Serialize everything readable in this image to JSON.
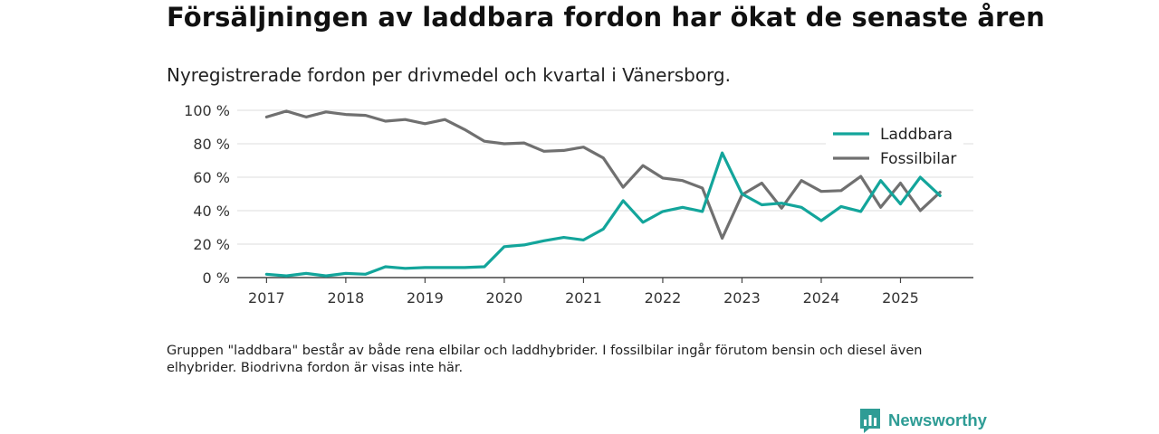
{
  "header": {
    "title": "Försäljningen av laddbara fordon har ökat de senaste åren",
    "subtitle": "Nyregistrerade fordon per drivmedel och kvartal i Vänersborg."
  },
  "footer": {
    "note": "Gruppen \"laddbara\" består av både rena elbilar och laddhybrider. I fossilbilar ingår förutom bensin och diesel även elhybrider. Biodrivna fordon är visas inte här.",
    "brand": "Newsworthy"
  },
  "colors": {
    "laddbara": "#13a59b",
    "fossil": "#707070",
    "grid": "#dddddd",
    "axis": "#444444",
    "brand": "#2e9c95"
  },
  "chart_data": {
    "type": "line",
    "title": "Försäljningen av laddbara fordon har ökat de senaste åren",
    "xlabel": "",
    "ylabel": "",
    "x": [
      2017.0,
      2017.25,
      2017.5,
      2017.75,
      2018.0,
      2018.25,
      2018.5,
      2018.75,
      2019.0,
      2019.25,
      2019.5,
      2019.75,
      2020.0,
      2020.25,
      2020.5,
      2020.75,
      2021.0,
      2021.25,
      2021.5,
      2021.75,
      2022.0,
      2022.25,
      2022.5,
      2022.75,
      2023.0,
      2023.25,
      2023.5,
      2023.75,
      2024.0,
      2024.25,
      2024.5,
      2024.75,
      2025.0,
      2025.25,
      2025.5
    ],
    "xlim": [
      2016.63,
      2025.92
    ],
    "ylim": [
      0,
      100
    ],
    "y_ticks": [
      0,
      20,
      40,
      60,
      80,
      100
    ],
    "y_tick_labels": [
      "0 %",
      "20 %",
      "40 %",
      "60 %",
      "80 %",
      "100 %"
    ],
    "x_ticks": [
      2017,
      2018,
      2019,
      2020,
      2021,
      2022,
      2023,
      2024,
      2025
    ],
    "x_tick_labels": [
      "2017",
      "2018",
      "2019",
      "2020",
      "2021",
      "2022",
      "2023",
      "2024",
      "2025"
    ],
    "grid": true,
    "legend_position": "top-right",
    "series": [
      {
        "name": "Laddbara",
        "color": "#13a59b",
        "values": [
          2,
          1,
          2.5,
          1,
          2.5,
          2,
          6.5,
          5.5,
          6,
          6,
          6,
          6.5,
          18.5,
          19.5,
          22,
          24,
          22.5,
          29,
          46,
          33,
          39.5,
          42,
          39.5,
          74.5,
          50,
          43.5,
          44.5,
          42,
          34,
          42.5,
          39.5,
          58,
          44,
          60,
          49
        ]
      },
      {
        "name": "Fossilbilar",
        "color": "#707070",
        "values": [
          96,
          99.5,
          96,
          99,
          97.5,
          97,
          93.5,
          94.5,
          92,
          94.5,
          88.5,
          81.5,
          80,
          80.5,
          75.5,
          76,
          78,
          71.5,
          54,
          67,
          59.5,
          58,
          53.5,
          23.5,
          49.5,
          56.5,
          41.5,
          58,
          51.5,
          52,
          60.5,
          42,
          56.5,
          40,
          51
        ]
      }
    ]
  }
}
